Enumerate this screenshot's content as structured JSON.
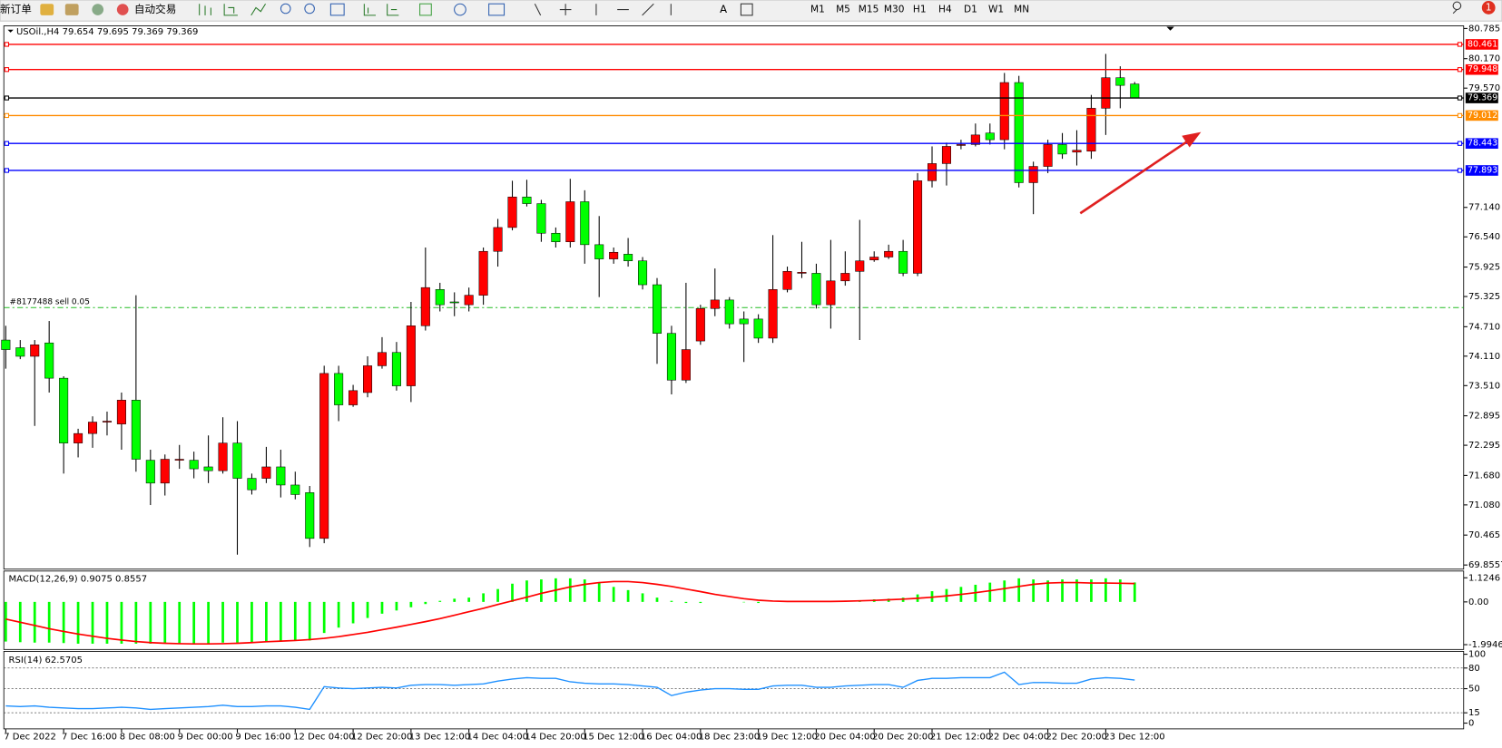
{
  "toolbar": {
    "new_order": "新订单",
    "auto_trading": "自动交易",
    "timeframes": [
      "M1",
      "M5",
      "M15",
      "M30",
      "H1",
      "H4",
      "D1",
      "W1",
      "MN"
    ],
    "notifications": 1
  },
  "chart_data": [
    {
      "type": "candlestick",
      "title": "USOil.,H4 79.654 79.695 79.369 79.369",
      "categories": [
        "7 Dec 2022",
        null,
        null,
        null,
        "7 Dec 16:00",
        null,
        null,
        null,
        "8 Dec 08:00",
        null,
        null,
        null,
        "9 Dec 00:00",
        null,
        null,
        null,
        "9 Dec 16:00",
        null,
        null,
        null,
        "12 Dec 04:00",
        null,
        null,
        null,
        "12 Dec 20:00",
        null,
        null,
        null,
        "13 Dec 12:00",
        null,
        null,
        null,
        "14 Dec 04:00",
        null,
        null,
        null,
        "14 Dec 20:00",
        null,
        null,
        null,
        "15 Dec 12:00",
        null,
        null,
        null,
        "16 Dec 04:00",
        null,
        null,
        null,
        "18 Dec 23:00",
        null,
        null,
        null,
        "19 Dec 12:00",
        null,
        null,
        null,
        "20 Dec 04:00",
        null,
        null,
        null,
        "20 Dec 20:00",
        null,
        null,
        null,
        "21 Dec 12:00",
        null,
        null,
        null,
        "22 Dec 04:00",
        null,
        null,
        null,
        "22 Dec 20:00",
        null,
        null,
        null,
        "23 Dec 12:00",
        null,
        null
      ],
      "open": [
        74.438,
        74.282,
        74.107,
        74.38,
        73.661,
        72.34,
        72.534,
        72.767,
        72.728,
        73.214,
        71.99,
        71.524,
        71.99,
        71.99,
        71.854,
        71.776,
        72.34,
        71.621,
        71.621,
        71.854,
        71.485,
        71.33,
        70.397,
        73.758,
        73.117,
        73.369,
        73.914,
        74.185,
        73.505,
        74.729,
        75.468,
        75.215,
        75.157,
        75.351,
        76.245,
        76.731,
        77.353,
        77.217,
        76.614,
        76.439,
        77.256,
        76.381,
        76.09,
        76.187,
        76.051,
        75.565,
        74.574,
        73.622,
        74.419,
        75.08,
        75.254,
        74.866,
        74.866,
        74.477,
        75.468,
        75.798,
        75.798,
        75.157,
        75.643,
        75.837,
        76.07,
        76.129,
        76.245,
        75.798,
        77.683,
        78.033,
        78.402,
        78.421,
        78.655,
        78.519,
        79.684,
        77.644,
        77.975,
        78.421,
        78.266,
        78.285,
        79.16,
        79.782,
        79.654
      ],
      "high": [
        74.729,
        74.438,
        74.438,
        74.826,
        73.7,
        72.631,
        72.884,
        72.981,
        73.369,
        75.351,
        72.204,
        72.107,
        72.301,
        72.165,
        72.495,
        72.865,
        72.786,
        71.718,
        72.262,
        72.204,
        71.757,
        71.466,
        73.914,
        73.914,
        73.525,
        74.107,
        74.497,
        74.399,
        75.215,
        76.323,
        75.604,
        75.41,
        75.507,
        76.323,
        76.906,
        77.683,
        77.703,
        77.294,
        76.731,
        77.722,
        77.489,
        76.964,
        76.323,
        76.517,
        76.129,
        75.701,
        74.729,
        75.604,
        75.157,
        75.896,
        75.313,
        75.021,
        74.963,
        76.576,
        75.934,
        76.439,
        75.993,
        76.478,
        76.245,
        76.887,
        76.245,
        76.381,
        76.478,
        77.839,
        78.383,
        78.46,
        78.519,
        78.849,
        78.849,
        79.879,
        79.82,
        78.072,
        78.519,
        78.655,
        78.713,
        79.432,
        80.267,
        80.015,
        79.695
      ],
      "low": [
        73.855,
        74.049,
        72.689,
        73.369,
        71.718,
        72.048,
        72.243,
        72.495,
        72.204,
        71.757,
        71.077,
        71.271,
        71.815,
        71.621,
        71.524,
        71.718,
        70.066,
        71.291,
        71.524,
        71.232,
        71.193,
        70.222,
        70.3,
        72.786,
        73.078,
        73.272,
        73.855,
        73.408,
        73.175,
        74.632,
        75.021,
        74.924,
        75.021,
        75.157,
        75.934,
        76.673,
        77.159,
        76.439,
        76.323,
        76.323,
        75.993,
        75.313,
        75.993,
        75.934,
        75.468,
        73.953,
        73.331,
        73.564,
        74.341,
        74.924,
        74.671,
        73.991,
        74.38,
        74.38,
        75.41,
        75.701,
        75.08,
        74.671,
        75.546,
        74.438,
        76.032,
        76.09,
        75.74,
        75.74,
        77.547,
        77.586,
        78.324,
        78.383,
        78.421,
        78.324,
        77.547,
        77.003,
        77.839,
        78.13,
        77.994,
        78.13,
        78.616,
        79.16,
        79.369
      ],
      "close": [
        74.244,
        74.107,
        74.341,
        73.661,
        72.34,
        72.534,
        72.767,
        72.786,
        73.214,
        72.01,
        71.524,
        72.01,
        72.01,
        71.815,
        71.776,
        72.34,
        71.621,
        71.388,
        71.854,
        71.485,
        71.291,
        70.397,
        73.758,
        73.117,
        73.408,
        73.914,
        74.185,
        73.505,
        74.729,
        75.507,
        75.157,
        75.196,
        75.351,
        76.245,
        76.731,
        77.353,
        77.217,
        76.614,
        76.439,
        77.256,
        76.381,
        76.09,
        76.226,
        76.051,
        75.565,
        74.574,
        73.622,
        74.244,
        75.08,
        75.254,
        74.769,
        74.769,
        74.477,
        75.468,
        75.837,
        75.818,
        75.157,
        75.643,
        75.798,
        76.051,
        76.129,
        76.245,
        75.798,
        77.683,
        78.033,
        78.383,
        78.421,
        78.616,
        78.519,
        79.684,
        77.644,
        77.975,
        78.421,
        78.227,
        78.305,
        79.16,
        79.782,
        79.626,
        79.369
      ],
      "up_color": "#ff0000",
      "down_color": "#00ff00",
      "ylim": [
        69.83,
        80.8
      ],
      "yticks": [
        80.785,
        {
          "value": 80.17,
          "label": "80.170"
        },
        {
          "value": 79.57,
          "label": "79.570"
        },
        {
          "value": 77.14,
          "label": "77.140"
        },
        {
          "value": 76.54,
          "label": "76.540"
        },
        75.925,
        75.325,
        {
          "value": 74.71,
          "label": "74.710"
        },
        {
          "value": 74.11,
          "label": "74.110"
        },
        {
          "value": 73.51,
          "label": "73.510"
        },
        72.895,
        72.295,
        {
          "value": 71.68,
          "label": "71.680"
        },
        {
          "value": 71.08,
          "label": "71.080"
        },
        70.465,
        69.8557
      ],
      "levels": [
        {
          "value": 80.461,
          "color": "#ff0000"
        },
        {
          "value": 79.948,
          "color": "#ff0000"
        },
        {
          "value": 79.369,
          "color": "#000000"
        },
        {
          "value": 79.012,
          "color": "#ff8c00"
        },
        {
          "value": 78.443,
          "color": "#0000ff"
        },
        {
          "value": 77.893,
          "color": "#0000ff"
        }
      ],
      "order_line": {
        "label": "#8177488 sell 0.05",
        "value": 75.099,
        "color": "#22bb22"
      }
    },
    {
      "type": "macd",
      "title": "MACD(12,26,9) 0.9075 0.8557",
      "histogram": [
        -1.85,
        -1.88,
        -1.9,
        -1.9,
        -1.92,
        -1.95,
        -1.95,
        -1.95,
        -1.95,
        -1.95,
        -1.95,
        -1.95,
        -1.95,
        -1.95,
        -1.95,
        -1.9,
        -1.9,
        -1.9,
        -1.88,
        -1.85,
        -1.8,
        -1.8,
        -1.45,
        -1.2,
        -1.0,
        -0.75,
        -0.55,
        -0.4,
        -0.25,
        -0.1,
        0.05,
        0.15,
        0.2,
        0.4,
        0.6,
        0.85,
        1.0,
        1.05,
        1.1,
        1.1,
        1.05,
        0.9,
        0.7,
        0.55,
        0.4,
        0.2,
        0.05,
        -0.05,
        -0.05,
        0.0,
        0.0,
        -0.02,
        -0.05,
        0.0,
        0.02,
        0.03,
        0.03,
        0.05,
        0.06,
        0.08,
        0.12,
        0.15,
        0.2,
        0.35,
        0.5,
        0.6,
        0.7,
        0.8,
        0.9,
        1.0,
        1.1,
        1.05,
        1.0,
        1.05,
        1.05,
        1.05,
        1.1,
        1.05,
        0.9075
      ],
      "signal": [
        -0.8,
        -0.95,
        -1.1,
        -1.25,
        -1.38,
        -1.5,
        -1.6,
        -1.7,
        -1.78,
        -1.85,
        -1.9,
        -1.93,
        -1.95,
        -1.96,
        -1.96,
        -1.95,
        -1.93,
        -1.9,
        -1.86,
        -1.83,
        -1.8,
        -1.76,
        -1.7,
        -1.62,
        -1.52,
        -1.42,
        -1.3,
        -1.18,
        -1.05,
        -0.92,
        -0.78,
        -0.62,
        -0.46,
        -0.3,
        -0.12,
        0.05,
        0.22,
        0.4,
        0.55,
        0.7,
        0.82,
        0.9,
        0.95,
        0.95,
        0.9,
        0.82,
        0.72,
        0.6,
        0.48,
        0.35,
        0.25,
        0.15,
        0.08,
        0.04,
        0.02,
        0.02,
        0.02,
        0.02,
        0.03,
        0.05,
        0.07,
        0.1,
        0.13,
        0.17,
        0.22,
        0.28,
        0.35,
        0.43,
        0.52,
        0.62,
        0.72,
        0.82,
        0.88,
        0.9,
        0.9,
        0.88,
        0.88,
        0.87,
        0.8557
      ],
      "hist_color": "#00ff00",
      "signal_color": "#ff0000",
      "ylim": [
        -2.22,
        1.44
      ],
      "yticks": [
        1.1246,
        {
          "value": 0,
          "label": "0.00"
        },
        -1.9946
      ]
    },
    {
      "type": "rsi",
      "title": "RSI(14) 62.5705",
      "values": [
        25,
        24,
        25,
        23,
        22,
        21,
        21,
        22,
        23,
        22,
        20,
        21,
        22,
        23,
        24,
        26,
        24,
        24,
        25,
        25,
        23,
        20,
        53,
        51,
        50,
        51,
        52,
        51,
        55,
        56,
        56,
        55,
        56,
        57,
        61,
        64,
        66,
        65,
        65,
        60,
        58,
        57,
        57,
        56,
        54,
        52,
        40,
        45,
        48,
        50,
        50,
        49,
        49,
        54,
        55,
        55,
        52,
        52,
        54,
        55,
        56,
        56,
        52,
        62,
        65,
        65,
        66,
        66,
        66,
        74,
        56,
        59,
        59,
        58,
        58,
        64,
        66,
        65,
        62.5705
      ],
      "color": "#1e90ff",
      "ylim": [
        0,
        100
      ],
      "yticks": [
        100,
        80,
        50,
        15,
        0
      ],
      "levels": [
        80,
        50,
        15
      ]
    }
  ]
}
